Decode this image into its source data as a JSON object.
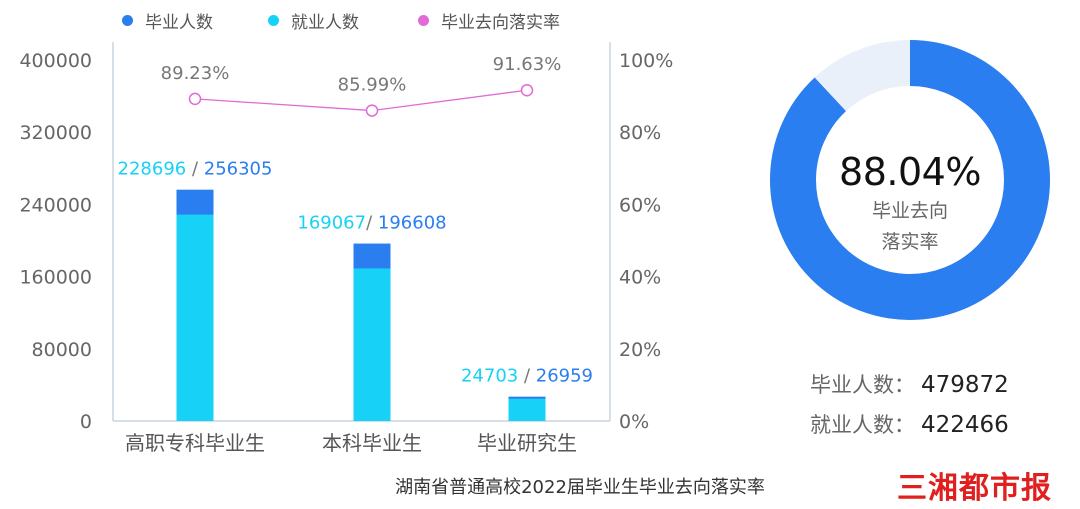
{
  "chart_data": {
    "type": "bar",
    "stacked_overlay": true,
    "categories": [
      "高职专科毕业生",
      "本科毕业生",
      "毕业研究生"
    ],
    "series": [
      {
        "name": "毕业人数",
        "values": [
          256305,
          196608,
          26959
        ],
        "color": "#2a7ef0",
        "kind": "bar"
      },
      {
        "name": "就业人数",
        "values": [
          228696,
          169067,
          24703
        ],
        "color": "#17d2f6",
        "kind": "bar"
      },
      {
        "name": "毕业去向落实率",
        "values": [
          89.23,
          85.99,
          91.63
        ],
        "color": "#e06ad6",
        "kind": "line",
        "axis": "right"
      }
    ],
    "bar_labels": [
      {
        "employed": "228696",
        "sep": " / ",
        "graduates": "256305"
      },
      {
        "employed": "169067",
        "sep": "/ ",
        "graduates": "196608"
      },
      {
        "employed": "24703",
        "sep": " / ",
        "graduates": "26959"
      }
    ],
    "rate_labels": [
      "89.23%",
      "85.99%",
      "91.63%"
    ],
    "ylim": [
      0,
      400000
    ],
    "yticks": [
      "0",
      "80000",
      "160000",
      "240000",
      "320000",
      "400000"
    ],
    "y2lim": [
      0,
      100
    ],
    "y2ticks": [
      "0%",
      "20%",
      "40%",
      "60%",
      "80%",
      "100%"
    ],
    "legend": "top"
  },
  "donut": {
    "value": 88.04,
    "label": "88.04%",
    "sub_line1": "毕业去向",
    "sub_line2": "落实率",
    "fill_color": "#2a7ef0",
    "track_color": "#eaf0fa"
  },
  "totals": {
    "graduates_label": "毕业人数：",
    "graduates_value": "479872",
    "employed_label": "就业人数：",
    "employed_value": "422466"
  },
  "caption": "湖南省普通高校2022届毕业生毕业去向落实率",
  "brand": "三湘都市报"
}
